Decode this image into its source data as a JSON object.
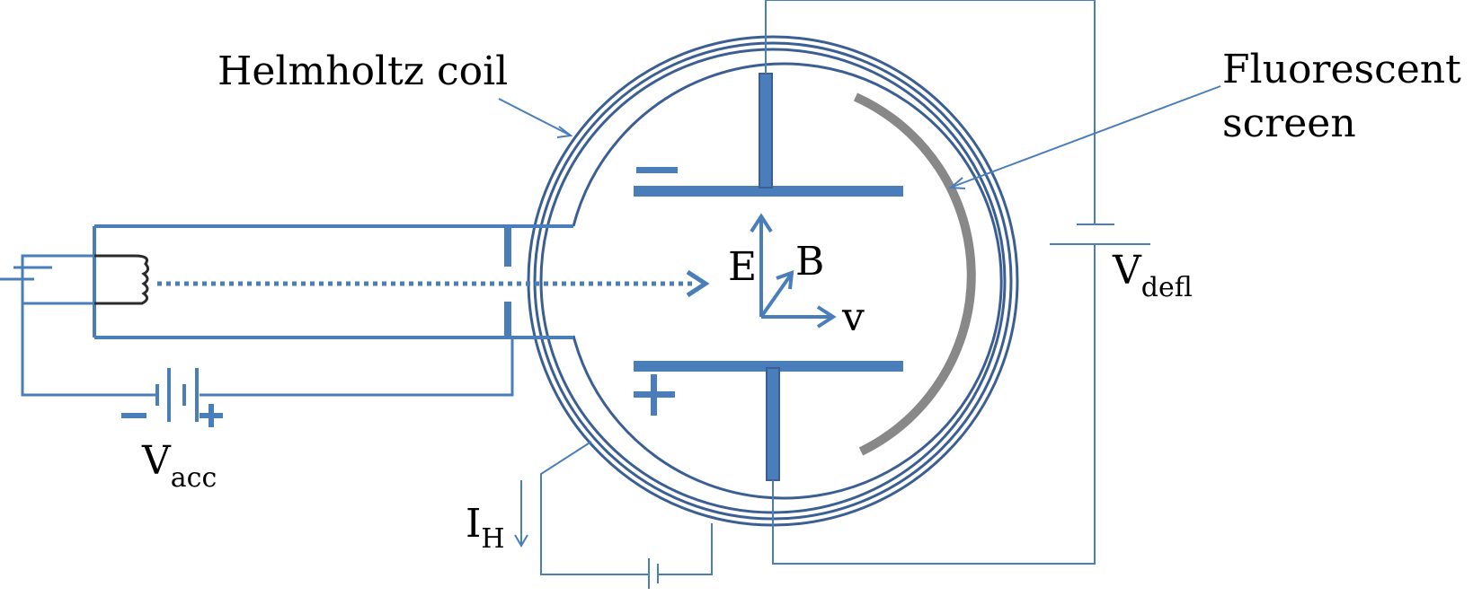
{
  "labels": {
    "helmholtz_coil": "Helmholtz coil",
    "fluorescent_line1": "Fluorescent",
    "fluorescent_line2": "screen",
    "e_field": "E",
    "b_field": "B",
    "velocity": "v",
    "minus_plate": "−",
    "plus_plate": "+",
    "battery_minus": "−",
    "battery_plus": "+",
    "v_acc_main": "V",
    "v_acc_sub": "acc",
    "v_defl_main": "V",
    "v_defl_sub": "defl",
    "i_h_main": "I",
    "i_h_sub": "H"
  },
  "colors": {
    "wire": "#4a7ebb",
    "coil": "#3b5f93",
    "plate": "#4a7ebb",
    "screen": "#888888",
    "text": "#000000"
  }
}
